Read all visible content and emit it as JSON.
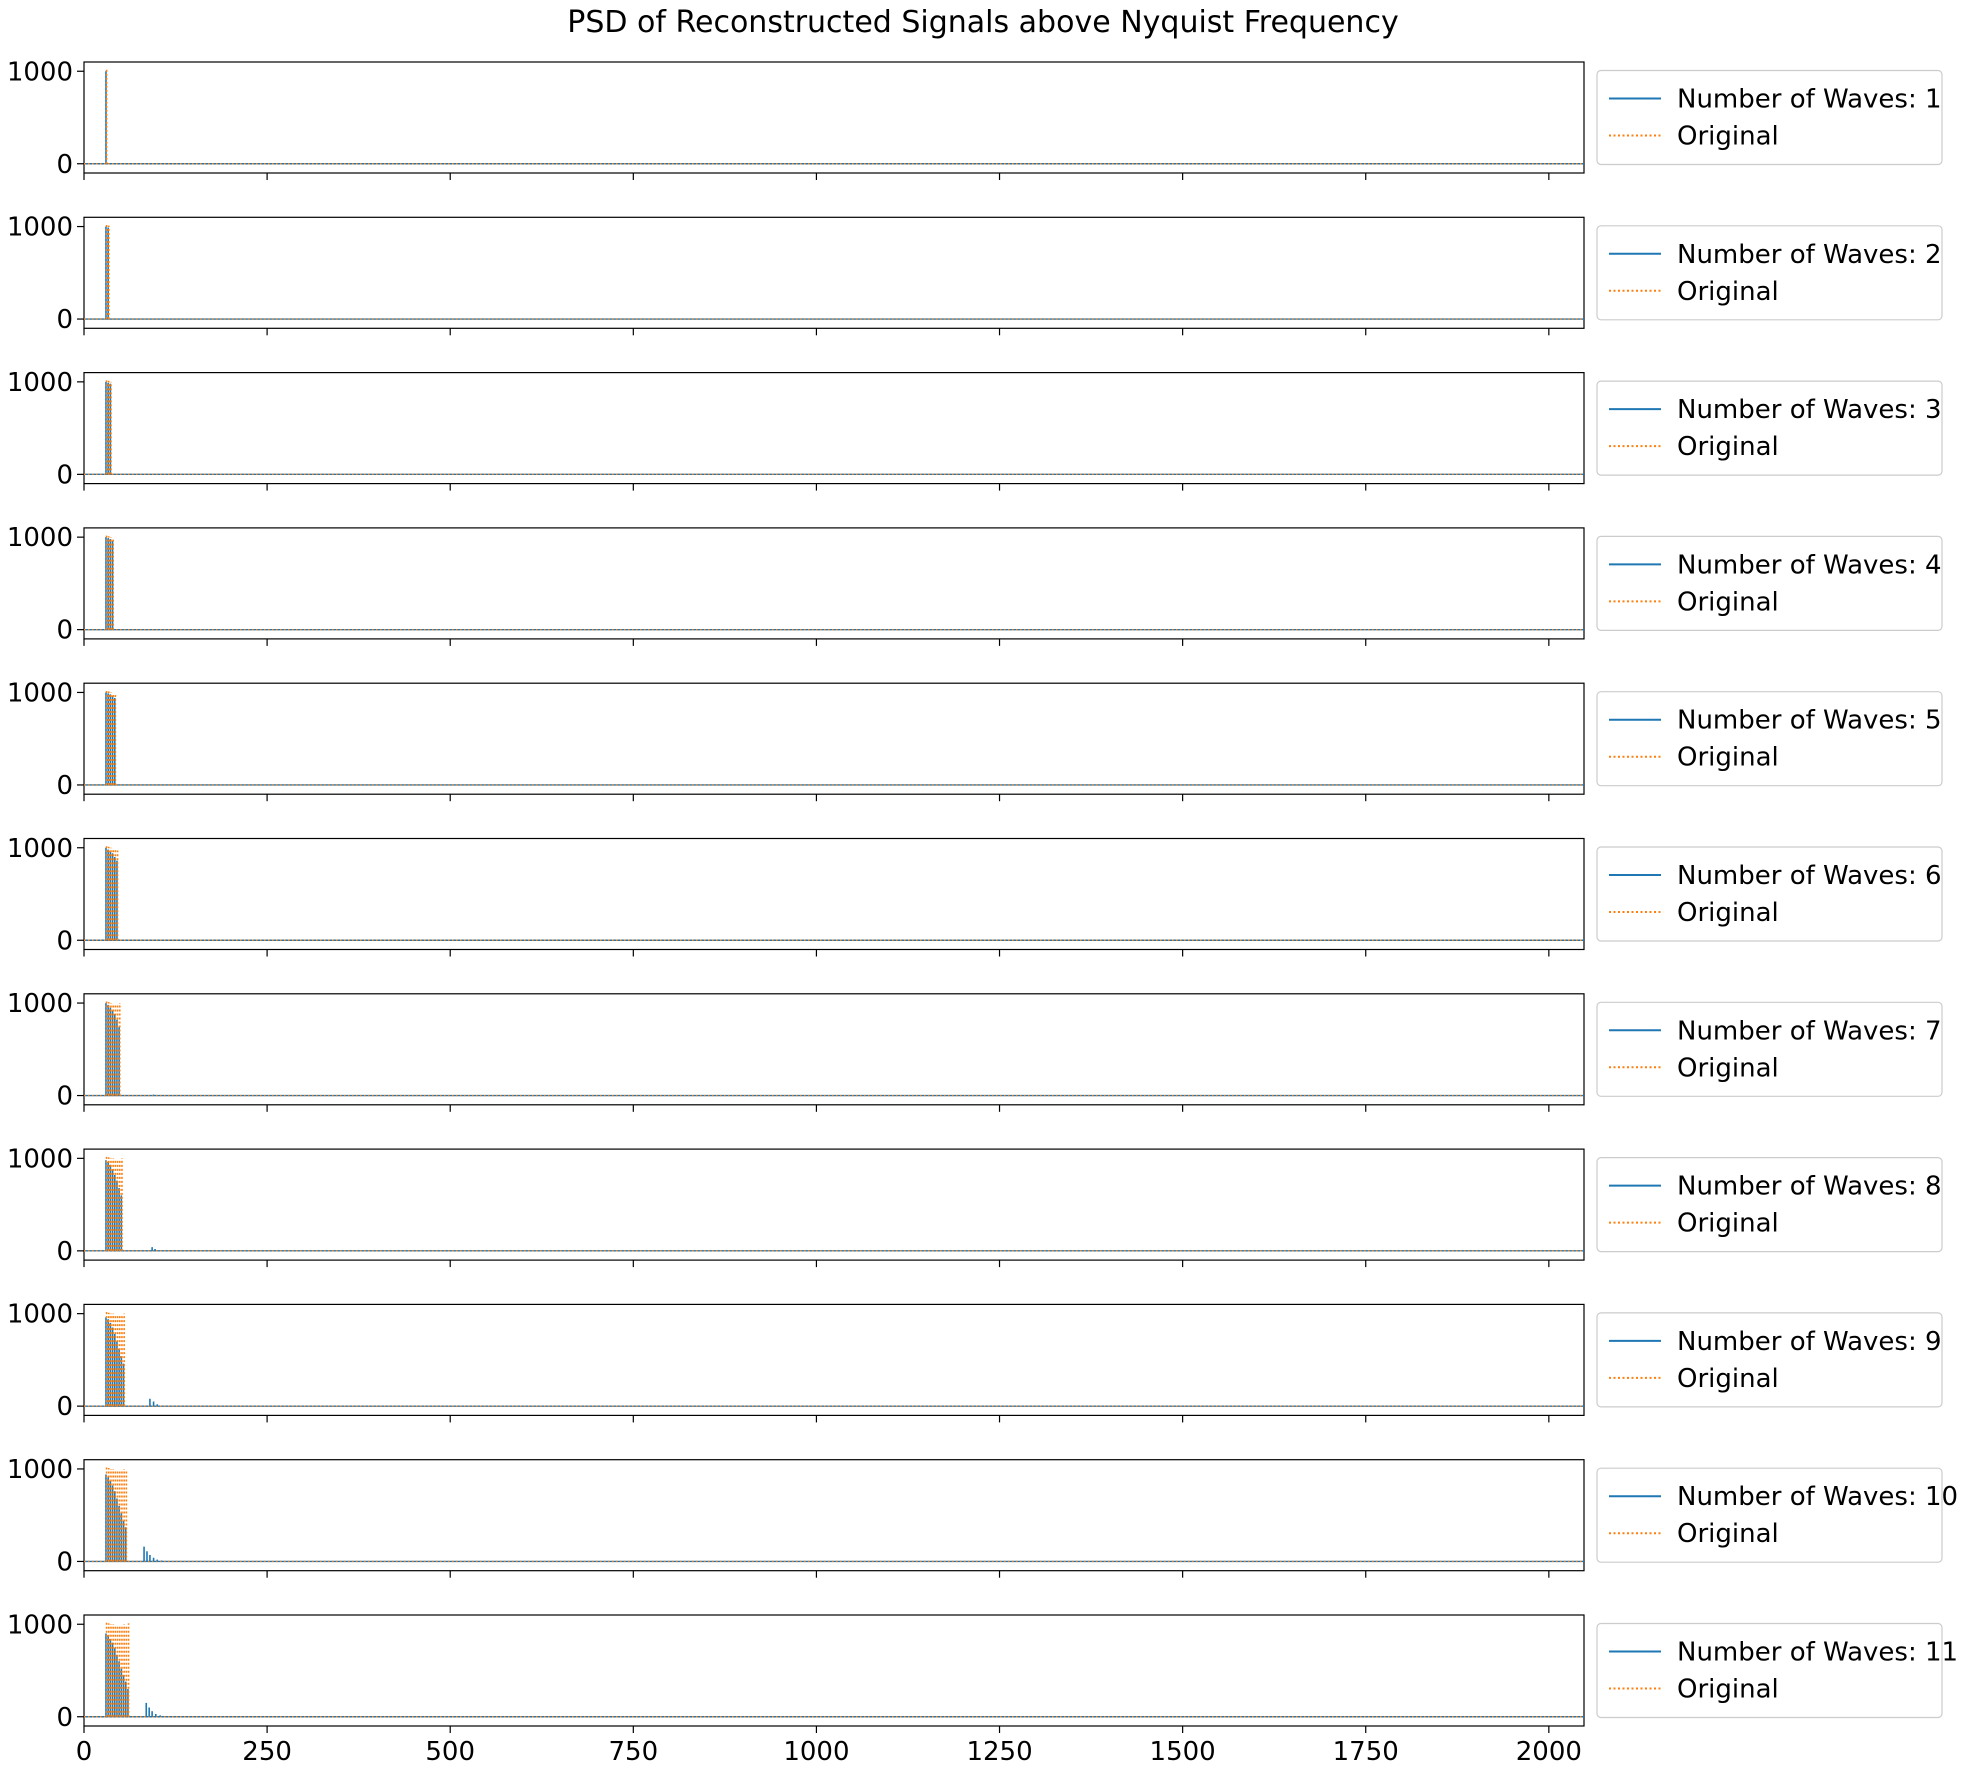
{
  "chart_data": {
    "type": "line",
    "title": "PSD of Reconstructed Signals above Nyquist Frequency",
    "xlim": [
      0,
      2048
    ],
    "ylim": [
      -100,
      1100
    ],
    "x_ticks": [
      0,
      250,
      500,
      750,
      1000,
      1250,
      1500,
      1750,
      2000
    ],
    "y_ticks": [
      0,
      1000
    ],
    "grid": false,
    "legend_placement": "right, outside each panel",
    "colors": {
      "reconstructed": "#1f77b4",
      "original": "#ff7f0e"
    },
    "peak_start_frequency": 30,
    "peak_spacing": 3,
    "panels": [
      {
        "legend": [
          "Number of Waves: 1",
          "Original"
        ],
        "series": [
          {
            "name": "Number of Waves: 1",
            "style": "solid",
            "peaks": [
              1000
            ]
          },
          {
            "name": "Original",
            "style": "dotted",
            "peaks": [
              1020
            ]
          }
        ],
        "minor_peaks": []
      },
      {
        "legend": [
          "Number of Waves: 2",
          "Original"
        ],
        "series": [
          {
            "name": "Number of Waves: 2",
            "style": "solid",
            "peaks": [
              1000,
              990
            ]
          },
          {
            "name": "Original",
            "style": "dotted",
            "peaks": [
              1020,
              1010
            ]
          }
        ],
        "minor_peaks": []
      },
      {
        "legend": [
          "Number of Waves: 3",
          "Original"
        ],
        "series": [
          {
            "name": "Number of Waves: 3",
            "style": "solid",
            "peaks": [
              1000,
              990,
              980
            ]
          },
          {
            "name": "Original",
            "style": "dotted",
            "peaks": [
              1020,
              1010,
              1000
            ]
          }
        ],
        "minor_peaks": []
      },
      {
        "legend": [
          "Number of Waves: 4",
          "Original"
        ],
        "series": [
          {
            "name": "Number of Waves: 4",
            "style": "solid",
            "peaks": [
              1000,
              990,
              980,
              960
            ]
          },
          {
            "name": "Original",
            "style": "dotted",
            "peaks": [
              1020,
              1010,
              1000,
              990
            ]
          }
        ],
        "minor_peaks": []
      },
      {
        "legend": [
          "Number of Waves: 5",
          "Original"
        ],
        "series": [
          {
            "name": "Number of Waves: 5",
            "style": "solid",
            "peaks": [
              1000,
              990,
              980,
              960,
              940
            ]
          },
          {
            "name": "Original",
            "style": "dotted",
            "peaks": [
              1020,
              1010,
              1000,
              990,
              980
            ]
          }
        ],
        "minor_peaks": []
      },
      {
        "legend": [
          "Number of Waves: 6",
          "Original"
        ],
        "series": [
          {
            "name": "Number of Waves: 6",
            "style": "solid",
            "peaks": [
              1000,
              980,
              960,
              940,
              900,
              860
            ]
          },
          {
            "name": "Original",
            "style": "dotted",
            "peaks": [
              1020,
              1010,
              1000,
              990,
              980,
              970
            ]
          }
        ],
        "minor_peaks": []
      },
      {
        "legend": [
          "Number of Waves: 7",
          "Original"
        ],
        "series": [
          {
            "name": "Number of Waves: 7",
            "style": "solid",
            "peaks": [
              1000,
              980,
              950,
              920,
              880,
              820,
              740
            ]
          },
          {
            "name": "Original",
            "style": "dotted",
            "peaks": [
              1020,
              1010,
              1000,
              990,
              990,
              980,
              1000
            ]
          }
        ],
        "minor_peaks": [
          {
            "x": 95,
            "value": 10
          }
        ]
      },
      {
        "legend": [
          "Number of Waves: 8",
          "Original"
        ],
        "series": [
          {
            "name": "Number of Waves: 8",
            "style": "solid",
            "peaks": [
              980,
              960,
              930,
              880,
              820,
              760,
              680,
              600
            ]
          },
          {
            "name": "Original",
            "style": "dotted",
            "peaks": [
              1020,
              1010,
              1000,
              1000,
              990,
              990,
              980,
              1000
            ]
          }
        ],
        "minor_peaks": [
          {
            "x": 93,
            "value": 40
          },
          {
            "x": 97,
            "value": 20
          }
        ]
      },
      {
        "legend": [
          "Number of Waves: 9",
          "Original"
        ],
        "series": [
          {
            "name": "Number of Waves: 9",
            "style": "solid",
            "peaks": [
              960,
              940,
              900,
              850,
              780,
              700,
              620,
              540,
              460
            ]
          },
          {
            "name": "Original",
            "style": "dotted",
            "peaks": [
              1020,
              1010,
              1000,
              1000,
              990,
              990,
              980,
              990,
              1000
            ]
          }
        ],
        "minor_peaks": [
          {
            "x": 90,
            "value": 80
          },
          {
            "x": 95,
            "value": 50
          },
          {
            "x": 100,
            "value": 20
          }
        ]
      },
      {
        "legend": [
          "Number of Waves: 10",
          "Original"
        ],
        "series": [
          {
            "name": "Number of Waves: 10",
            "style": "solid",
            "peaks": [
              940,
              910,
              870,
              820,
              760,
              680,
              600,
              520,
              440,
              370
            ]
          },
          {
            "name": "Original",
            "style": "dotted",
            "peaks": [
              1020,
              1010,
              1000,
              1000,
              990,
              990,
              980,
              990,
              1000,
              990
            ]
          }
        ],
        "minor_peaks": [
          {
            "x": 82,
            "value": 160
          },
          {
            "x": 86,
            "value": 110
          },
          {
            "x": 90,
            "value": 70
          },
          {
            "x": 95,
            "value": 40
          },
          {
            "x": 100,
            "value": 20
          },
          {
            "x": 106,
            "value": 10
          }
        ]
      },
      {
        "legend": [
          "Number of Waves: 11",
          "Original"
        ],
        "series": [
          {
            "name": "Number of Waves: 11",
            "style": "solid",
            "peaks": [
              900,
              880,
              840,
              800,
              740,
              670,
              600,
              520,
              450,
              380,
              300
            ]
          },
          {
            "name": "Original",
            "style": "dotted",
            "peaks": [
              1020,
              1010,
              1000,
              1000,
              990,
              990,
              980,
              990,
              1000,
              990,
              1010
            ]
          }
        ],
        "minor_peaks": [
          {
            "x": 85,
            "value": 150
          },
          {
            "x": 89,
            "value": 100
          },
          {
            "x": 93,
            "value": 60
          },
          {
            "x": 98,
            "value": 30
          },
          {
            "x": 104,
            "value": 15
          }
        ]
      }
    ]
  }
}
